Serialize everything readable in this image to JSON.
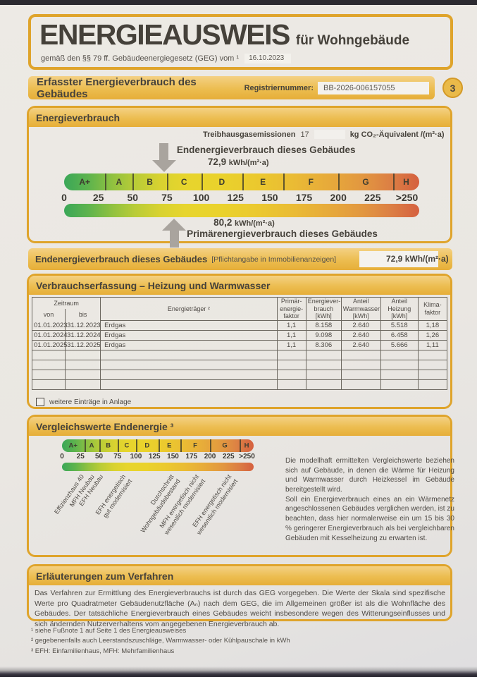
{
  "header": {
    "title": "ENERGIEAUSWEIS",
    "title_suffix": "für Wohngebäude",
    "law_line": "gemäß den §§ 79 ff. Gebäudeenergiegesetz (GEG) vom ¹",
    "law_date": "16.10.2023"
  },
  "banner": {
    "title": "Erfasster Energieverbrauch des Gebäudes",
    "registry_label": "Registriernummer:",
    "registry_value": "BB-2026-006157055",
    "page_number": "3"
  },
  "scale": {
    "classes": [
      "A+",
      "A",
      "B",
      "C",
      "D",
      "E",
      "F",
      "G",
      "H"
    ],
    "class_boundaries": [
      30,
      50,
      75,
      100,
      130,
      160,
      200,
      240
    ],
    "axis_max": 259,
    "tick_step": 25,
    "ticks": [
      "0",
      "25",
      "50",
      "75",
      "100",
      "125",
      "150",
      "175",
      "200",
      "225",
      ">250"
    ]
  },
  "consumption": {
    "section_title": "Energieverbrauch",
    "ghg_label": "Treibhausgasemissionen",
    "ghg_value": "17",
    "ghg_unit": "kg CO₂-Äquivalent /(m²·a)",
    "final_label": "Endenergieverbrauch dieses Gebäudes",
    "final_value": "72,9",
    "final_unit": "kWh/(m²·a)",
    "final_numeric": 72.9,
    "primary_value": "80,2",
    "primary_unit": "kWh/(m²·a)",
    "primary_label": "Primärenergieverbrauch dieses Gebäudes",
    "primary_numeric": 80.2
  },
  "mandatory": {
    "label": "Endenergieverbrauch dieses Gebäudes",
    "note": "[Pflichtangabe in Immobilienanzeigen]",
    "value": "72,9 kWh/(m²·a)"
  },
  "consumption_table": {
    "section_title": "Verbrauchserfassung – Heizung und Warmwasser",
    "headers": {
      "period": "Zeitraum",
      "from": "von",
      "to": "bis",
      "carrier": "Energieträger ²",
      "primary_factor": "Primär-\nenergie-\nfaktor",
      "consumption": "Energiever-\nbrauch\n[kWh]",
      "hot_water": "Anteil\nWarmwasser\n[kWh]",
      "heating": "Anteil\nHeizung\n[kWh]",
      "climate_factor": "Klima-\nfaktor"
    },
    "rows": [
      {
        "from": "01.01.2023",
        "to": "31.12.2023",
        "carrier": "Erdgas",
        "factor": "1,1",
        "consumption": "8.158",
        "hot_water": "2.640",
        "heating": "5.518",
        "climate": "1,18"
      },
      {
        "from": "01.01.2024",
        "to": "31.12.2024",
        "carrier": "Erdgas",
        "factor": "1,1",
        "consumption": "9.098",
        "hot_water": "2.640",
        "heating": "6.458",
        "climate": "1,26"
      },
      {
        "from": "01.01.2025",
        "to": "31.12.2025",
        "carrier": "Erdgas",
        "factor": "1,1",
        "consumption": "8.306",
        "hot_water": "2.640",
        "heating": "5.666",
        "climate": "1,11"
      }
    ],
    "empty_row_count": 4,
    "checkbox_label": "weitere Einträge in Anlage"
  },
  "comparison": {
    "section_title": "Vergleichswerte Endenergie ³",
    "reference_labels": [
      {
        "text": "Effizienzhaus 40",
        "position_pct": 9
      },
      {
        "text": "MFH Neubau",
        "position_pct": 14.5
      },
      {
        "text": "EFH Neubau",
        "position_pct": 19
      },
      {
        "text": "EFH energetisch\ngut modernisiert",
        "position_pct": 31
      },
      {
        "text": "Durchschnitt\nWohngebäudebestand",
        "position_pct": 56
      },
      {
        "text": "MFH energetisch nicht\nwesentlich modernisiert",
        "position_pct": 69
      },
      {
        "text": "EFH energetisch nicht\nwesentlich modernisiert",
        "position_pct": 86
      }
    ],
    "text_paragraph_1": "Die modellhaft ermittelten Vergleichswerte beziehen sich auf Gebäude, in denen die Wärme für Heizung und Warmwasser durch Heizkessel im Gebäude bereitgestellt wird.",
    "text_paragraph_2": "Soll ein Energieverbrauch eines an ein Wärmenetz angeschlossenen Gebäudes verglichen werden, ist zu beachten, dass hier normalerweise ein um 15 bis 30 % geringerer Energieverbrauch als bei vergleichbaren Gebäuden mit Kesselheizung zu erwarten ist."
  },
  "procedure": {
    "section_title": "Erläuterungen zum Verfahren",
    "text": "Das Verfahren zur Ermittlung des Energieverbrauchs ist durch das GEG vorgegeben. Die Werte der Skala sind spezifische Werte pro Quadratmeter Gebäudenutzfläche (Aₙ) nach dem GEG, die im Allgemeinen größer ist als die Wohnfläche des Gebäudes. Der tatsächliche Energieverbrauch eines Gebäudes weicht insbesondere wegen des Witterungseinflusses und sich ändernden Nutzerverhaltens vom angegebenen Energieverbrauch ab.",
    "footnotes": [
      "¹ siehe Fußnote 1 auf Seite 1 des Energieausweises",
      "² gegebenenfalls auch Leerstandszuschläge, Warmwasser- oder Kühlpauschale in kWh",
      "³ EFH: Einfamilienhaus, MFH: Mehrfamilienhaus"
    ]
  },
  "colors": {
    "gold_border": "#dfa42b",
    "paper": "#eae7e2",
    "scale_green": "#3aa758",
    "scale_red": "#d5603f",
    "arrow_gray": "#a9a49e"
  }
}
